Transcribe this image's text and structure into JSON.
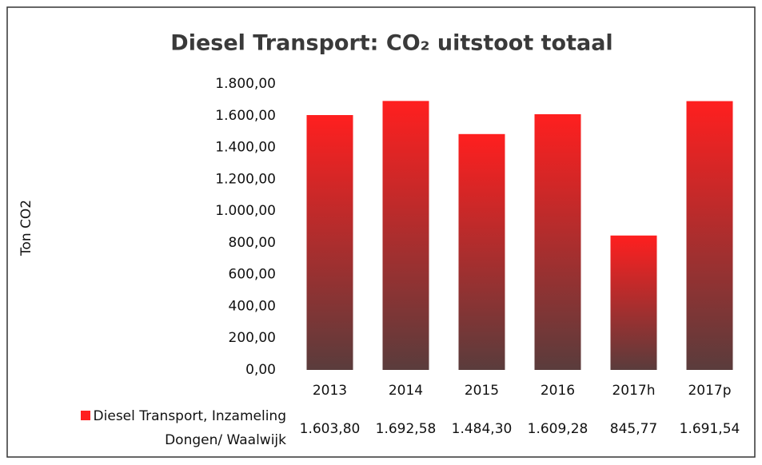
{
  "chart_data": {
    "type": "bar",
    "title": "Diesel Transport: CO₂ uitstoot totaal",
    "y_label": "Ton CO2",
    "categories": [
      "2013",
      "2014",
      "2015",
      "2016",
      "2017h",
      "2017p"
    ],
    "series": [
      {
        "name": "Diesel Transport, Inzameling Dongen/ Waalwijk",
        "color": "#ff1f1f",
        "values": [
          1603.8,
          1692.58,
          1484.3,
          1609.28,
          845.77,
          1691.54
        ],
        "value_labels": [
          "1.603,80",
          "1.692,58",
          "1.484,30",
          "1.609,28",
          "845,77",
          "1.691,54"
        ]
      }
    ],
    "ylim": [
      0,
      1800
    ],
    "yticks": [
      {
        "value": 0,
        "label": "0,00"
      },
      {
        "value": 200,
        "label": "200,00"
      },
      {
        "value": 400,
        "label": "400,00"
      },
      {
        "value": 600,
        "label": "600,00"
      },
      {
        "value": 800,
        "label": "800,00"
      },
      {
        "value": 1000,
        "label": "1.000,00"
      },
      {
        "value": 1200,
        "label": "1.200,00"
      },
      {
        "value": 1400,
        "label": "1.400,00"
      },
      {
        "value": 1600,
        "label": "1.600,00"
      },
      {
        "value": 1800,
        "label": "1.800,00"
      }
    ]
  }
}
